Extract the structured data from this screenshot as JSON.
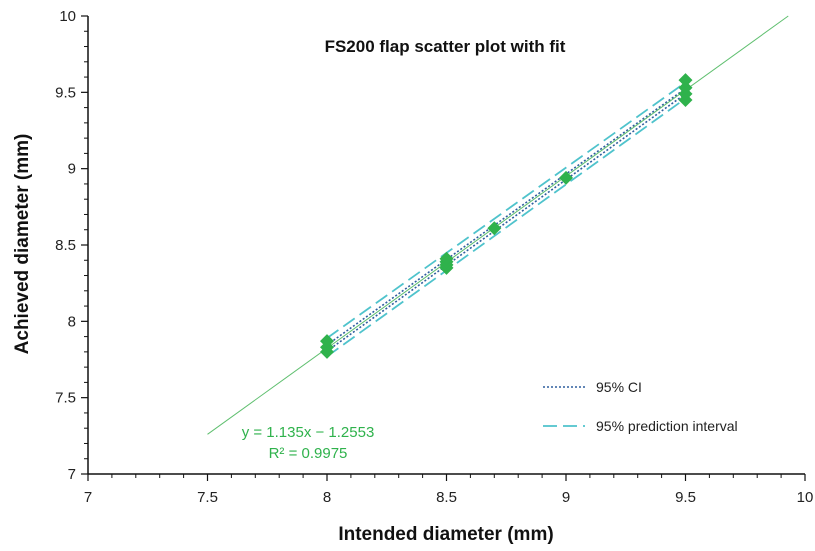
{
  "chart_data": {
    "type": "scatter",
    "title": "FS200 flap scatter plot with fit",
    "xlabel": "Intended diameter (mm)",
    "ylabel": "Achieved diameter (mm)",
    "xlim": [
      7,
      10
    ],
    "ylim": [
      7,
      10
    ],
    "x_ticks": [
      7,
      7.5,
      8,
      8.5,
      9,
      9.5,
      10
    ],
    "y_ticks": [
      7,
      7.5,
      8,
      8.5,
      9,
      9.5,
      10
    ],
    "x_tick_labels": [
      "7",
      "7.5",
      "8",
      "8.5",
      "9",
      "9.5",
      "10"
    ],
    "y_tick_labels": [
      "7",
      "7.5",
      "8",
      "8.5",
      "9",
      "9.5",
      "10"
    ],
    "grid": false,
    "legend_position": "bottom-right",
    "series": [
      {
        "kind": "points",
        "color": "#2fb24c",
        "x": [
          8,
          8,
          8,
          8.5,
          8.5,
          8.5,
          8.5,
          8.7,
          9,
          9.5,
          9.5,
          9.5,
          9.5
        ],
        "y": [
          7.8,
          7.83,
          7.87,
          8.35,
          8.37,
          8.39,
          8.41,
          8.61,
          8.94,
          9.45,
          9.49,
          9.53,
          9.58
        ]
      },
      {
        "kind": "fit-line",
        "color": "#5fbf6f",
        "x": [
          7.5,
          9.93
        ],
        "y": [
          7.26,
          10.0
        ]
      },
      {
        "kind": "ci-band",
        "name": "95% CI",
        "color": "#2f5f9e",
        "x": [
          8,
          9.5
        ],
        "lower": [
          7.805,
          9.49
        ],
        "upper": [
          7.845,
          9.525
        ]
      },
      {
        "kind": "prediction-band",
        "name": "95% prediction interval",
        "color": "#4fc3cc",
        "x": [
          8,
          9.5
        ],
        "lower": [
          7.77,
          9.46
        ],
        "upper": [
          7.89,
          9.565
        ]
      }
    ],
    "legend": [
      {
        "label": "95% CI",
        "style": "dotted",
        "color": "#2f5f9e"
      },
      {
        "label": "95% prediction interval",
        "style": "dashed",
        "color": "#4fc3cc"
      }
    ],
    "annotations": {
      "equation": "y = 1.135x − 1.2553",
      "r_squared": "R² = 0.9975",
      "color": "#2fb24c"
    }
  }
}
